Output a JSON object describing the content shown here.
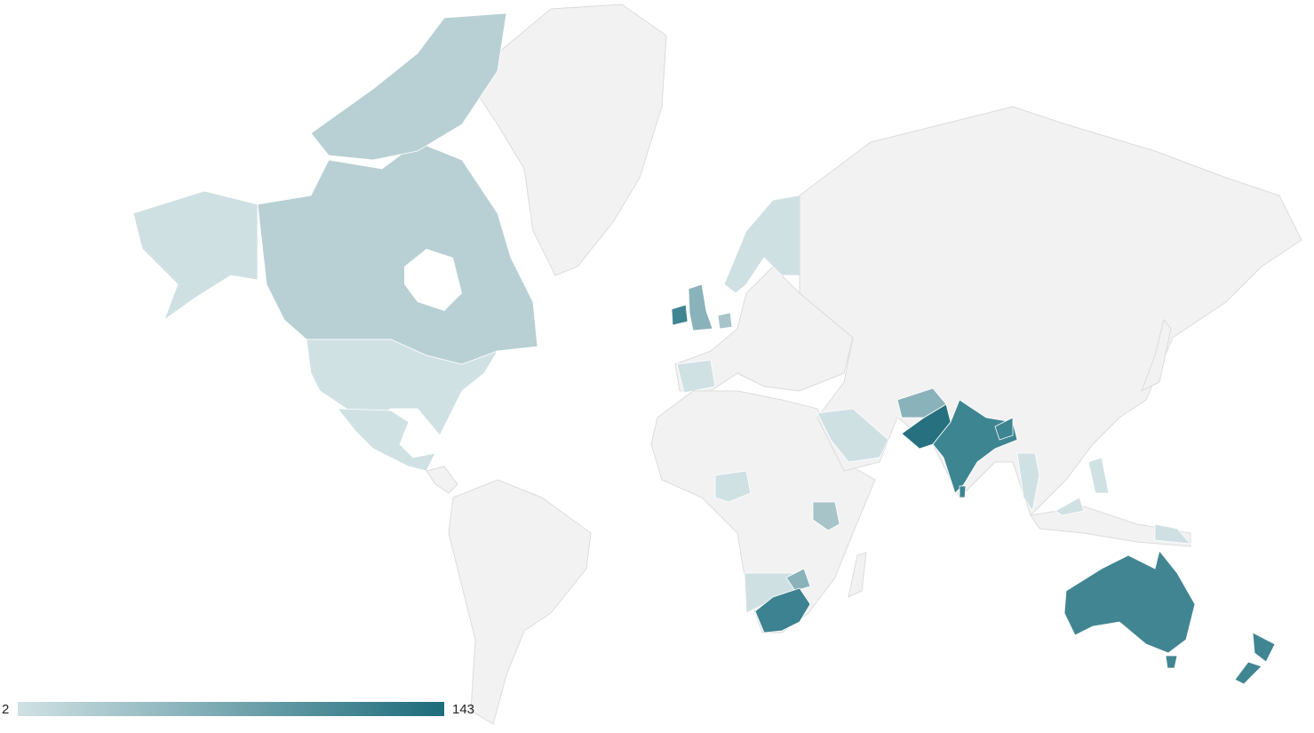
{
  "chart_data": {
    "type": "choropleth",
    "legend": {
      "min": 2,
      "max": 143,
      "color_min": "#d0e1e4",
      "color_max": "#1c6b7b"
    }
  }
}
